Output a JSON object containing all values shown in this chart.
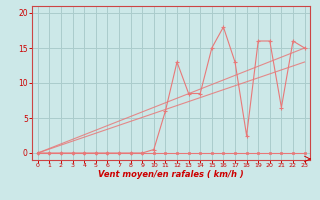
{
  "bg_color": "#cce8e8",
  "grid_color": "#aacccc",
  "line_color": "#e87878",
  "marker_color": "#e87878",
  "xlabel": "Vent moyen/en rafales ( km/h )",
  "xlabel_color": "#cc0000",
  "tick_color": "#cc0000",
  "spine_color": "#cc4444",
  "xlim": [
    -0.5,
    23.5
  ],
  "ylim": [
    -1,
    21
  ],
  "xticks": [
    0,
    1,
    2,
    3,
    4,
    5,
    6,
    7,
    8,
    9,
    10,
    11,
    12,
    13,
    14,
    15,
    16,
    17,
    18,
    19,
    20,
    21,
    22,
    23
  ],
  "yticks": [
    0,
    5,
    10,
    15,
    20
  ],
  "series": {
    "line1_x": [
      0,
      1,
      2,
      3,
      4,
      5,
      6,
      7,
      8,
      9,
      10,
      11,
      12,
      13,
      14,
      15,
      16,
      17,
      18,
      19,
      20,
      21,
      22,
      23
    ],
    "line1_y": [
      0,
      0,
      0,
      0,
      0,
      0,
      0,
      0,
      0,
      0,
      0,
      0,
      0,
      0,
      0,
      0,
      0,
      0,
      0,
      0,
      0,
      0,
      0,
      0
    ],
    "line2_x": [
      0,
      1,
      2,
      3,
      4,
      5,
      6,
      7,
      8,
      9,
      10,
      11,
      12,
      13,
      14,
      15,
      16,
      17,
      18,
      19,
      20,
      21,
      22,
      23
    ],
    "line2_y": [
      0,
      0,
      0,
      0,
      0,
      0,
      0,
      0,
      0,
      0,
      0.5,
      6,
      13,
      8.5,
      8.5,
      15,
      18,
      13,
      2.5,
      16,
      16,
      6.5,
      16,
      15
    ],
    "line3_x": [
      0,
      23
    ],
    "line3_y": [
      0,
      15
    ],
    "line4_x": [
      0,
      23
    ],
    "line4_y": [
      0,
      13
    ]
  }
}
